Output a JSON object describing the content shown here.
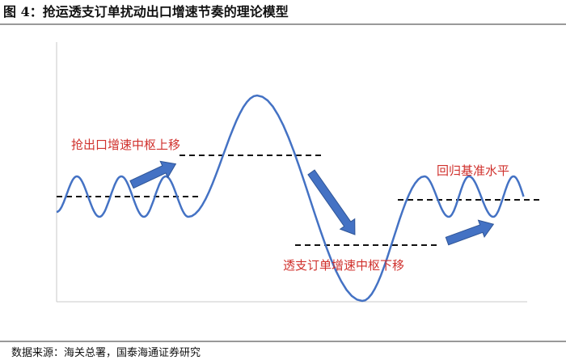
{
  "header": {
    "title": "图 4：抢运透支订单扰动出口增速节奏的理论模型"
  },
  "annotations": [
    "抢出口增速中枢上移",
    "透支订单增速中枢下移",
    "回归基准水平"
  ],
  "footer": {
    "source": "数据来源：海关总署，国泰海通证券研究"
  }
}
